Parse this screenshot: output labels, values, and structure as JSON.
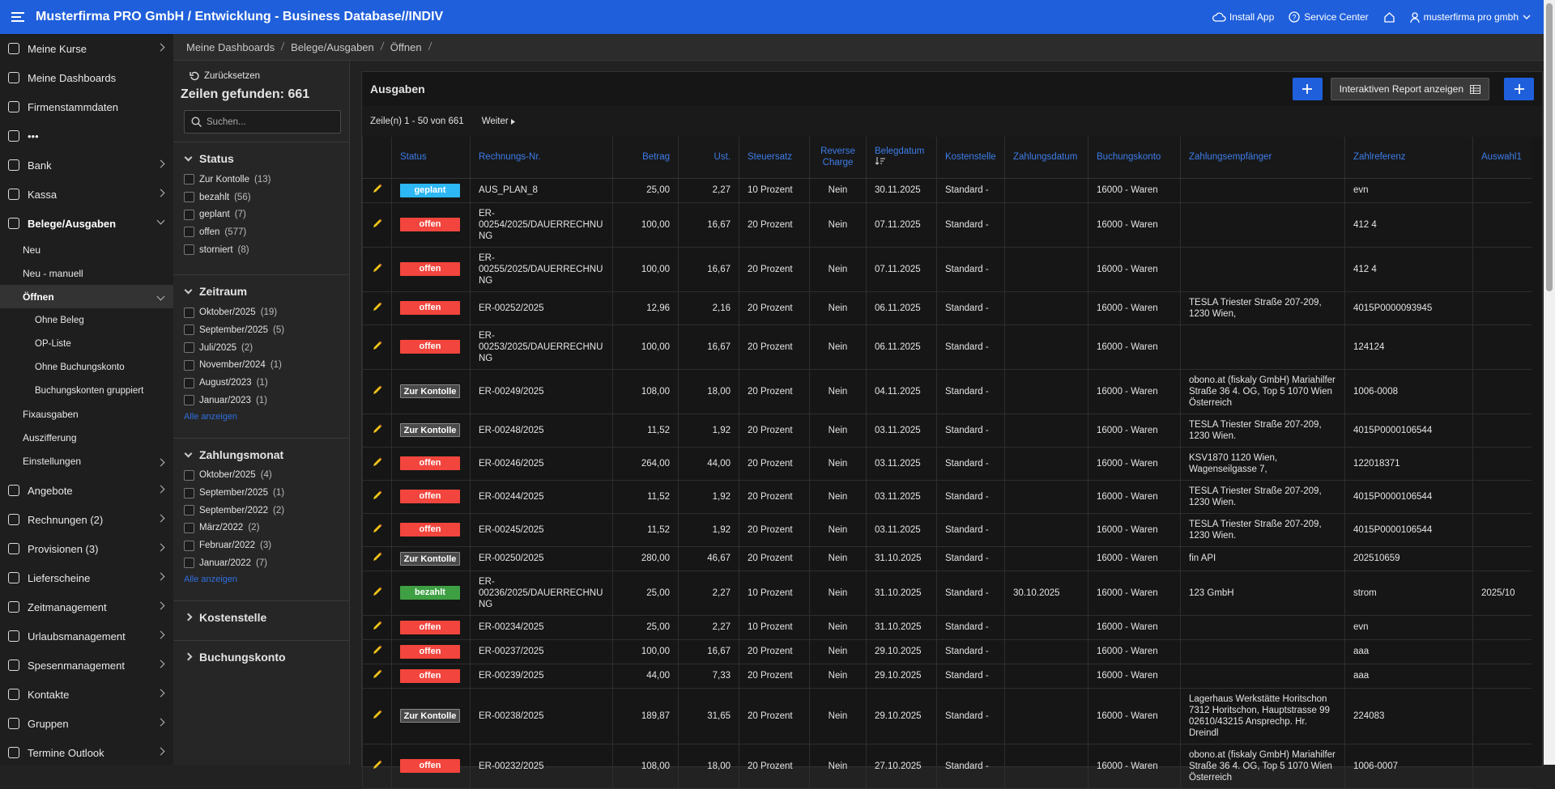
{
  "header": {
    "title": "Musterfirma PRO GmbH / Entwicklung - Business Database//INDIV",
    "install_app": "Install App",
    "service_center": "Service Center",
    "user": "musterfirma pro gmbh"
  },
  "sidebar": {
    "items": [
      {
        "label": "Meine Kurse",
        "expandable": true
      },
      {
        "label": "Meine Dashboards"
      },
      {
        "label": "Firmenstammdaten"
      },
      {
        "label": "•••"
      },
      {
        "label": "Bank",
        "expandable": true
      },
      {
        "label": "Kassa",
        "expandable": true
      },
      {
        "label": "Belege/Ausgaben",
        "expandable": true,
        "active": true,
        "children": [
          {
            "label": "Neu"
          },
          {
            "label": "Neu - manuell"
          },
          {
            "label": "Öffnen",
            "expandable": true,
            "active": true,
            "children": [
              {
                "label": "Ohne Beleg"
              },
              {
                "label": "OP-Liste"
              },
              {
                "label": "Ohne Buchungskonto"
              },
              {
                "label": "Buchungskonten gruppiert"
              }
            ]
          },
          {
            "label": "Fixausgaben"
          },
          {
            "label": "Auszifferung"
          },
          {
            "label": "Einstellungen",
            "expandable": true
          }
        ]
      },
      {
        "label": "Angebote",
        "expandable": true
      },
      {
        "label": "Rechnungen (2)",
        "expandable": true
      },
      {
        "label": "Provisionen (3)",
        "expandable": true
      },
      {
        "label": "Lieferscheine",
        "expandable": true
      },
      {
        "label": "Zeitmanagement",
        "expandable": true
      },
      {
        "label": "Urlaubsmanagement",
        "expandable": true
      },
      {
        "label": "Spesenmanagement",
        "expandable": true
      },
      {
        "label": "Kontakte",
        "expandable": true
      },
      {
        "label": "Gruppen",
        "expandable": true
      },
      {
        "label": "Termine Outlook",
        "expandable": true
      }
    ]
  },
  "breadcrumb": [
    "Meine Dashboards",
    "Belege/Ausgaben",
    "Öffnen"
  ],
  "facets": {
    "reset": "Zurücksetzen",
    "rows_found": "Zeilen gefunden: 661",
    "search_placeholder": "Suchen...",
    "groups": [
      {
        "title": "Status",
        "expanded": true,
        "options": [
          {
            "label": "Zur Kontolle",
            "count": "(13)"
          },
          {
            "label": "bezahlt",
            "count": "(56)"
          },
          {
            "label": "geplant",
            "count": "(7)"
          },
          {
            "label": "offen",
            "count": "(577)"
          },
          {
            "label": "storniert",
            "count": "(8)"
          }
        ]
      },
      {
        "title": "Zeitraum",
        "expanded": true,
        "options": [
          {
            "label": "Oktober/2025",
            "count": "(19)"
          },
          {
            "label": "September/2025",
            "count": "(5)"
          },
          {
            "label": "Juli/2025",
            "count": "(2)"
          },
          {
            "label": "November/2024",
            "count": "(1)"
          },
          {
            "label": "August/2023",
            "count": "(1)"
          },
          {
            "label": "Januar/2023",
            "count": "(1)"
          }
        ],
        "show_all": "Alle anzeigen"
      },
      {
        "title": "Zahlungsmonat",
        "expanded": true,
        "options": [
          {
            "label": "Oktober/2025",
            "count": "(4)"
          },
          {
            "label": "September/2025",
            "count": "(1)"
          },
          {
            "label": "September/2022",
            "count": "(2)"
          },
          {
            "label": "März/2022",
            "count": "(2)"
          },
          {
            "label": "Februar/2022",
            "count": "(3)"
          },
          {
            "label": "Januar/2022",
            "count": "(7)"
          }
        ],
        "show_all": "Alle anzeigen"
      },
      {
        "title": "Kostenstelle",
        "expanded": false
      },
      {
        "title": "Buchungskonto",
        "expanded": false
      }
    ]
  },
  "report": {
    "title": "Ausgaben",
    "interactive_button": "Interaktiven Report anzeigen",
    "pagination": "Zeile(n) 1 - 50 von 661",
    "next": "Weiter"
  },
  "table": {
    "columns": [
      "Status",
      "Rechnungs-Nr.",
      "Betrag",
      "Ust.",
      "Steuersatz",
      "Reverse Charge",
      "Belegdatum",
      "Kostenstelle",
      "Zahlungsdatum",
      "Buchungskonto",
      "Zahlungsempfänger",
      "Zahlreferenz",
      "Auswahl1"
    ],
    "rows": [
      {
        "status": "geplant",
        "status_color": "#2db7f5",
        "cells": [
          "AUS_PLAN_8",
          "25,00",
          "2,27",
          "10 Prozent",
          "Nein",
          "30.11.2025",
          "Standard -",
          null,
          "16000 - Waren",
          null,
          "evn",
          null
        ]
      },
      {
        "status": "offen",
        "status_color": "#f2453d",
        "cells": [
          "ER-00254/2025/DAUERRECHNUNG",
          "100,00",
          "16,67",
          "20 Prozent",
          "Nein",
          "07.11.2025",
          "Standard -",
          null,
          "16000 - Waren",
          null,
          "412 4",
          null
        ]
      },
      {
        "status": "offen",
        "status_color": "#f2453d",
        "cells": [
          "ER-00255/2025/DAUERRECHNUNG",
          "100,00",
          "16,67",
          "20 Prozent",
          "Nein",
          "07.11.2025",
          "Standard -",
          null,
          "16000 - Waren",
          null,
          "412 4",
          null
        ]
      },
      {
        "status": "offen",
        "status_color": "#f2453d",
        "cells": [
          "ER-00252/2025",
          "12,96",
          "2,16",
          "20 Prozent",
          "Nein",
          "06.11.2025",
          "Standard -",
          null,
          "16000 - Waren",
          "TESLA Triester Straße 207-209, 1230 Wien,",
          "4015P0000093945",
          null
        ]
      },
      {
        "status": "offen",
        "status_color": "#f2453d",
        "cells": [
          "ER-00253/2025/DAUERRECHNUNG",
          "100,00",
          "16,67",
          "20 Prozent",
          "Nein",
          "06.11.2025",
          "Standard -",
          null,
          "16000 - Waren",
          null,
          "124124",
          null
        ]
      },
      {
        "status": "Zur Kontolle",
        "status_color": "#4a4a4a",
        "cells": [
          "ER-00249/2025",
          "108,00",
          "18,00",
          "20 Prozent",
          "Nein",
          "04.11.2025",
          "Standard -",
          null,
          "16000 - Waren",
          "obono.at (fiskaly GmbH) Mariahilfer Straße 36 4. OG, Top 5 1070 Wien Österreich",
          "1006-0008",
          null
        ]
      },
      {
        "status": "Zur Kontolle",
        "status_color": "#4a4a4a",
        "cells": [
          "ER-00248/2025",
          "11,52",
          "1,92",
          "20 Prozent",
          "Nein",
          "03.11.2025",
          "Standard -",
          null,
          "16000 - Waren",
          "TESLA Triester Straße 207-209, 1230 Wien.",
          "4015P0000106544",
          null
        ]
      },
      {
        "status": "offen",
        "status_color": "#f2453d",
        "cells": [
          "ER-00246/2025",
          "264,00",
          "44,00",
          "20 Prozent",
          "Nein",
          "03.11.2025",
          "Standard -",
          null,
          "16000 - Waren",
          "KSV1870 1120 Wien, Wagenseilgasse 7,",
          "122018371",
          null
        ]
      },
      {
        "status": "offen",
        "status_color": "#f2453d",
        "cells": [
          "ER-00244/2025",
          "11,52",
          "1,92",
          "20 Prozent",
          "Nein",
          "03.11.2025",
          "Standard -",
          null,
          "16000 - Waren",
          "TESLA Triester Straße 207-209, 1230 Wien.",
          "4015P0000106544",
          null
        ]
      },
      {
        "status": "offen",
        "status_color": "#f2453d",
        "cells": [
          "ER-00245/2025",
          "11,52",
          "1,92",
          "20 Prozent",
          "Nein",
          "03.11.2025",
          "Standard -",
          null,
          "16000 - Waren",
          "TESLA Triester Straße 207-209, 1230 Wien.",
          "4015P0000106544",
          null
        ]
      },
      {
        "status": "Zur Kontolle",
        "status_color": "#4a4a4a",
        "cells": [
          "ER-00250/2025",
          "280,00",
          "46,67",
          "20 Prozent",
          "Nein",
          "31.10.2025",
          "Standard -",
          null,
          "16000 - Waren",
          "fin API",
          "202510659",
          null
        ]
      },
      {
        "status": "bezahlt",
        "status_color": "#3ea043",
        "cells": [
          "ER-00236/2025/DAUERRECHNUNG",
          "25,00",
          "2,27",
          "10 Prozent",
          "Nein",
          "31.10.2025",
          "Standard -",
          "30.10.2025",
          "16000 - Waren",
          "123 GmbH",
          "strom",
          "2025/10"
        ]
      },
      {
        "status": "offen",
        "status_color": "#f2453d",
        "cells": [
          "ER-00234/2025",
          "25,00",
          "2,27",
          "10 Prozent",
          "Nein",
          "31.10.2025",
          "Standard -",
          null,
          "16000 - Waren",
          null,
          "evn",
          null
        ]
      },
      {
        "status": "offen",
        "status_color": "#f2453d",
        "cells": [
          "ER-00237/2025",
          "100,00",
          "16,67",
          "20 Prozent",
          "Nein",
          "29.10.2025",
          "Standard -",
          null,
          "16000 - Waren",
          null,
          "aaa",
          null
        ]
      },
      {
        "status": "offen",
        "status_color": "#f2453d",
        "cells": [
          "ER-00239/2025",
          "44,00",
          "7,33",
          "20 Prozent",
          "Nein",
          "29.10.2025",
          "Standard -",
          null,
          "16000 - Waren",
          null,
          "aaa",
          null
        ]
      },
      {
        "status": "Zur Kontolle",
        "status_color": "#4a4a4a",
        "cells": [
          "ER-00238/2025",
          "189,87",
          "31,65",
          "20 Prozent",
          "Nein",
          "29.10.2025",
          "Standard -",
          null,
          "16000 - Waren",
          "Lagerhaus Werkstätte Horitschon 7312 Horitschon, Hauptstrasse 99 02610/43215 Ansprechp. Hr. Dreindl",
          "224083",
          null
        ]
      },
      {
        "status": "offen",
        "status_color": "#f2453d",
        "cells": [
          "ER-00232/2025",
          "108,00",
          "18,00",
          "20 Prozent",
          "Nein",
          "27.10.2025",
          "Standard -",
          null,
          "16000 - Waren",
          "obono.at (fiskaly GmbH) Mariahilfer Straße 36 4. OG, Top 5 1070 Wien Österreich",
          "1006-0007",
          null
        ]
      }
    ]
  }
}
